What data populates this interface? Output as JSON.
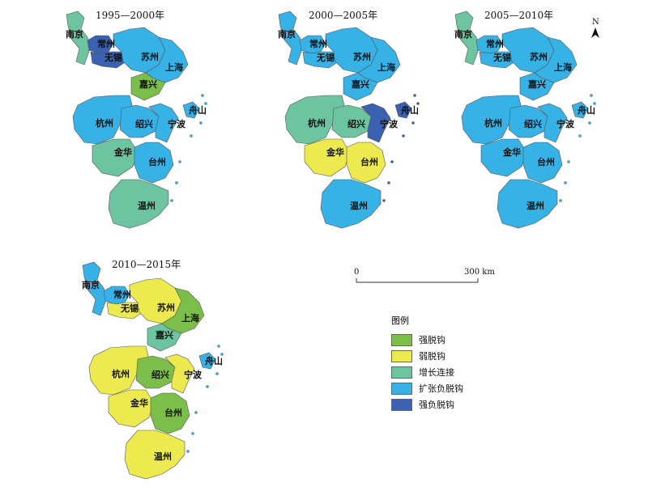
{
  "colors": {
    "strong": "#7bbf4a",
    "weak": "#ecea4e",
    "growth": "#6cc4a0",
    "expansion": "#36b2e6",
    "strongNeg": "#3a62b0"
  },
  "legend": {
    "title": "图例",
    "items": [
      {
        "key": "strong",
        "label": "强脱钩"
      },
      {
        "key": "weak",
        "label": "弱脱钩"
      },
      {
        "key": "growth",
        "label": "增长连接"
      },
      {
        "key": "expansion",
        "label": "扩张负脱钩"
      },
      {
        "key": "strongNeg",
        "label": "强负脱钩"
      }
    ]
  },
  "scale": {
    "zero": "0",
    "end": "300 km"
  },
  "north": "N",
  "panels": [
    {
      "title": "1995—2000年",
      "cities": {
        "nanjing": "growth",
        "changzhou": "strongNeg",
        "wuxi": "strongNeg",
        "suzhou": "expansion",
        "shanghai": "expansion",
        "jiaxing": "strong",
        "hangzhou": "expansion",
        "shaoxing": "expansion",
        "ningbo": "expansion",
        "zhoushan": "expansion",
        "jinhua": "growth",
        "taizhou": "expansion",
        "wenzhou": "growth"
      }
    },
    {
      "title": "2000—2005年",
      "cities": {
        "nanjing": "expansion",
        "changzhou": "expansion",
        "wuxi": "expansion",
        "suzhou": "expansion",
        "shanghai": "expansion",
        "jiaxing": "expansion",
        "hangzhou": "growth",
        "shaoxing": "growth",
        "ningbo": "strongNeg",
        "zhoushan": "strongNeg",
        "jinhua": "weak",
        "taizhou": "weak",
        "wenzhou": "expansion"
      }
    },
    {
      "title": "2005—2010年",
      "cities": {
        "nanjing": "growth",
        "changzhou": "expansion",
        "wuxi": "expansion",
        "suzhou": "expansion",
        "shanghai": "expansion",
        "jiaxing": "expansion",
        "hangzhou": "expansion",
        "shaoxing": "expansion",
        "ningbo": "expansion",
        "zhoushan": "expansion",
        "jinhua": "expansion",
        "taizhou": "expansion",
        "wenzhou": "expansion"
      }
    },
    {
      "title": "2010—2015年",
      "cities": {
        "nanjing": "expansion",
        "changzhou": "expansion",
        "wuxi": "weak",
        "suzhou": "weak",
        "shanghai": "strong",
        "jiaxing": "growth",
        "hangzhou": "weak",
        "shaoxing": "strong",
        "ningbo": "weak",
        "zhoushan": "expansion",
        "jinhua": "weak",
        "taizhou": "strong",
        "wenzhou": "weak"
      }
    }
  ],
  "labels": {
    "nanjing": "南京",
    "changzhou": "常州",
    "wuxi": "无锡",
    "suzhou": "苏州",
    "shanghai": "上海",
    "jiaxing": "嘉兴",
    "hangzhou": "杭州",
    "shaoxing": "绍兴",
    "ningbo": "宁波",
    "zhoushan": "舟山",
    "jinhua": "金华",
    "taizhou": "台州",
    "wenzhou": "温州"
  }
}
